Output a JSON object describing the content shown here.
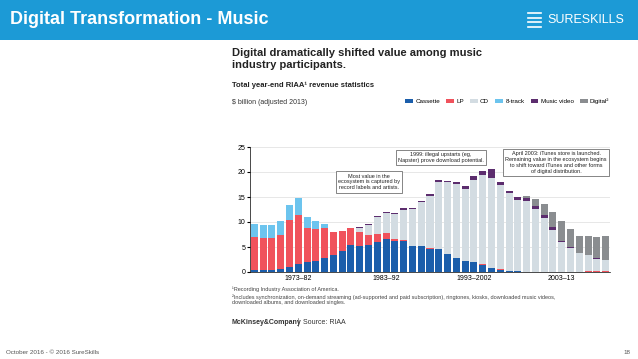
{
  "slide": {
    "title": "Digital Transformation - Music",
    "logo": "SURESKILLS",
    "footer": "October 2016 - © 2016 SureSkills",
    "page": "18"
  },
  "chart_data": {
    "type": "bar",
    "stacked": true,
    "title": "Digital dramatically shifted value among music industry participants.",
    "subtitle": "Total year-end RIAA¹ revenue statistics",
    "y_label": "$ billion (adjusted 2013)",
    "categories": [
      null,
      null,
      null,
      null,
      null,
      "1973–82",
      null,
      null,
      null,
      null,
      null,
      null,
      null,
      null,
      null,
      "1983–92",
      null,
      null,
      null,
      null,
      null,
      null,
      null,
      null,
      null,
      "1993–2002",
      null,
      null,
      null,
      null,
      null,
      null,
      null,
      null,
      null,
      "2003–13",
      null,
      null,
      null,
      null,
      null
    ],
    "series": [
      {
        "name": "Cassette",
        "color": "#1b5eab",
        "values": [
          0.4,
          0.41,
          0.43,
          0.6,
          0.96,
          1.61,
          1.94,
          2.2,
          2.72,
          3.35,
          4.24,
          5.34,
          5.23,
          5.33,
          6.07,
          6.67,
          6.29,
          6.18,
          5.16,
          5.17,
          4.69,
          4.67,
          3.52,
          2.82,
          2.21,
          2.03,
          1.49,
          0.85,
          0.48,
          0.27,
          0.13,
          0.03,
          0,
          0,
          0,
          0,
          0,
          0,
          0,
          0,
          0
        ]
      },
      {
        "name": "LP",
        "color": "#f0525c",
        "values": [
          6.55,
          6.43,
          6.45,
          6.82,
          9.39,
          9.79,
          6.86,
          6.48,
          6.0,
          4.66,
          3.95,
          3.47,
          2.78,
          2.1,
          1.63,
          1.05,
          0.41,
          0.15,
          0.05,
          0.03,
          0.02,
          0.03,
          0.04,
          0.05,
          0.05,
          0.05,
          0.05,
          0.04,
          0.04,
          0.03,
          0.03,
          0.02,
          0.02,
          0.02,
          0.03,
          0.06,
          0.07,
          0.09,
          0.12,
          0.17,
          0.21
        ]
      },
      {
        "name": "CD",
        "color": "#d3dce2",
        "values": [
          0,
          0,
          0,
          0,
          0,
          0,
          0,
          0,
          0,
          0,
          0,
          0,
          0.85,
          1.98,
          3.27,
          4.12,
          4.87,
          6.14,
          7.42,
          8.84,
          10.48,
          13.29,
          14.35,
          14.7,
          14.38,
          16.32,
          17.94,
          17.84,
          16.91,
          15.54,
          14.27,
          14.08,
          12.52,
          10.87,
          8.35,
          5.91,
          4.71,
          3.63,
          3.22,
          2.51,
          2.12
        ]
      },
      {
        "name": "8-track",
        "color": "#6cc4ee",
        "values": [
          2.57,
          2.6,
          2.53,
          2.78,
          3.12,
          3.39,
          2.15,
          1.49,
          0.79,
          0.09,
          0.01,
          0,
          0,
          0,
          0,
          0,
          0,
          0,
          0,
          0,
          0,
          0,
          0,
          0,
          0,
          0,
          0,
          0,
          0,
          0,
          0,
          0,
          0,
          0,
          0,
          0,
          0,
          0,
          0,
          0,
          0
        ]
      },
      {
        "name": "Music video",
        "color": "#5c2d6e",
        "values": [
          0,
          0,
          0,
          0,
          0,
          0,
          0,
          0,
          0,
          0,
          0,
          0,
          0.15,
          0.25,
          0.25,
          0.25,
          0.22,
          0.31,
          0.2,
          0.26,
          0.34,
          0.36,
          0.34,
          0.35,
          0.47,
          0.9,
          0.8,
          1.8,
          0.6,
          0.37,
          0.51,
          0.75,
          0.72,
          0.52,
          0.54,
          0.24,
          0.18,
          0.1,
          0.08,
          0.07,
          0.06
        ]
      },
      {
        "name": "Digital²",
        "color": "#8a8d90",
        "values": [
          0,
          0,
          0,
          0,
          0,
          0,
          0,
          0,
          0,
          0,
          0,
          0,
          0,
          0,
          0,
          0,
          0,
          0,
          0,
          0,
          0,
          0,
          0,
          0,
          0,
          0,
          0,
          0,
          0,
          0,
          0,
          0.4,
          1.3,
          2.2,
          3.1,
          3.9,
          3.7,
          3.4,
          3.7,
          4.3,
          4.9
        ]
      }
    ],
    "ylim": [
      0,
      25
    ],
    "yticks": [
      0,
      5,
      10,
      15,
      20,
      25
    ],
    "grid": true,
    "legend": "upper right",
    "annotations": [
      "Most value in the ecosystem is captured by record labels and artists.",
      "1999: illegal upstarts (eg, Napster) prove download potential.",
      "April 2003: iTunes store is launched. Remaining value in the ecosystem begins to shift toward iTunes and other forms of digital distribution."
    ],
    "footnotes": [
      "¹Recording Industry Association of America.",
      "²Includes synchronization, on-demand streaming (ad-supported and paid subscription), ringtones, kiosks, downloaded music videos, downloaded albums, and downloaded singles."
    ],
    "brand": "McKinsey&Company",
    "source": "Source: RIAA"
  }
}
